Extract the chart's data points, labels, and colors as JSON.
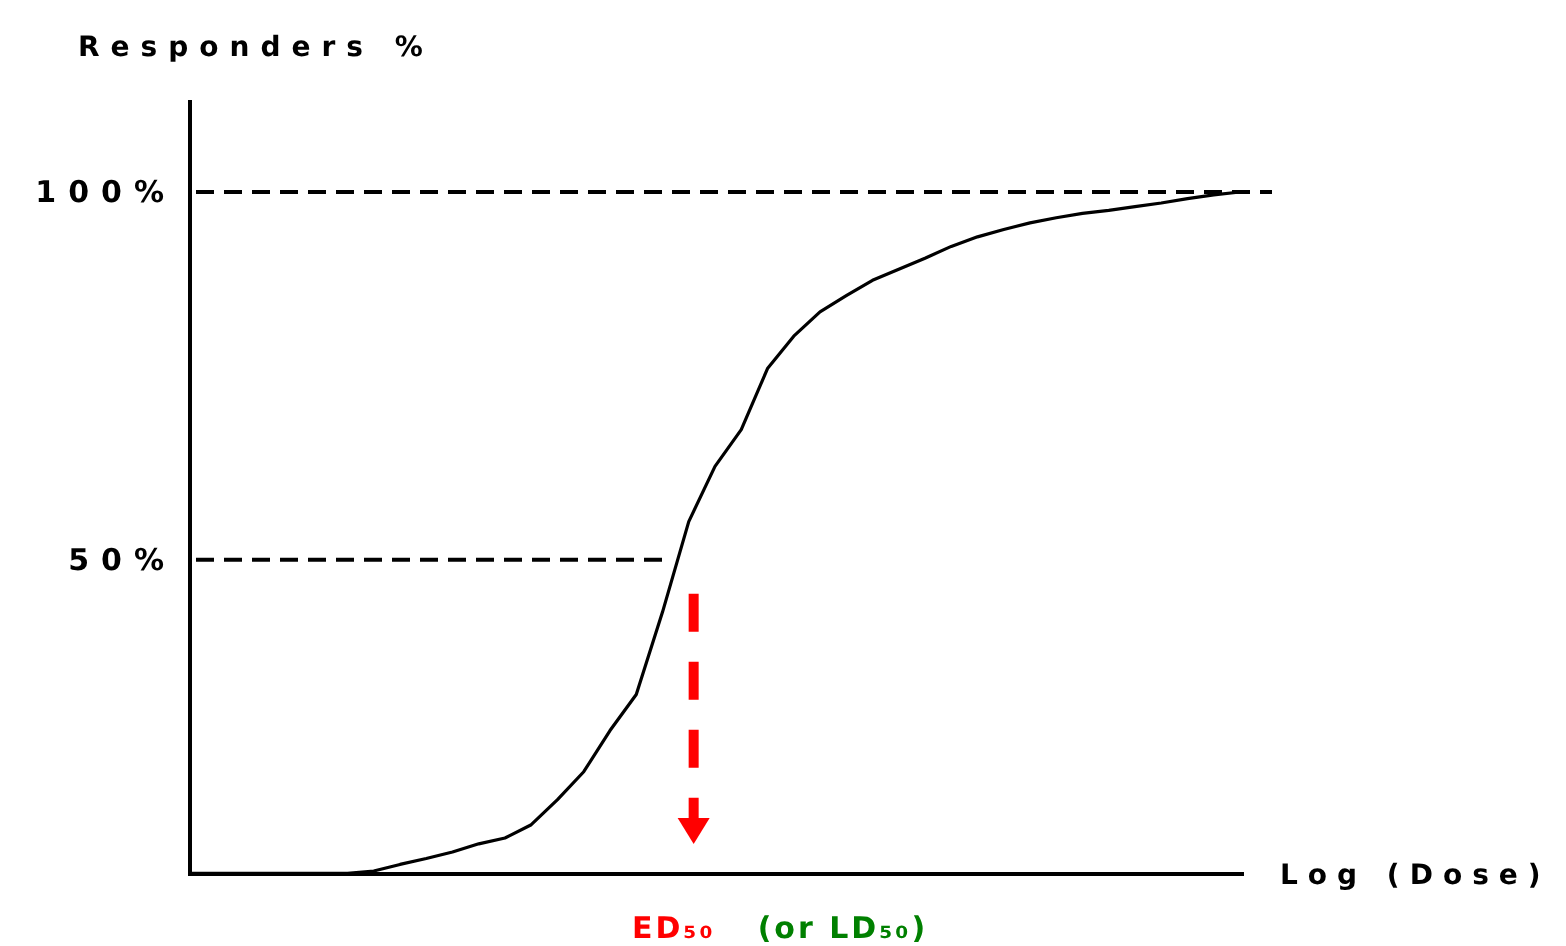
{
  "chart_data": {
    "type": "line",
    "xlabel": "Log (Dose)",
    "ylabel": "Responders %",
    "categories": [
      null,
      null,
      null,
      null,
      null,
      null,
      null,
      null,
      null,
      null,
      null,
      null,
      null,
      null,
      null,
      null,
      null,
      null,
      null,
      null,
      null,
      null,
      null,
      null,
      null,
      null,
      null,
      null,
      null,
      null,
      null,
      null,
      null,
      null,
      null,
      null,
      null,
      null,
      null,
      null,
      null
    ],
    "series": [
      {
        "color": "#000000",
        "values": [
          7.4,
          7.4,
          7.4,
          7.4,
          7.4,
          7.4,
          7.4,
          7.7,
          8.6,
          9.4,
          10.3,
          11.4,
          12.2,
          14,
          17.4,
          21.2,
          26.8,
          31.7,
          42.9,
          55.2,
          62.7,
          67.7,
          76,
          80.4,
          83.7,
          85.9,
          88,
          89.5,
          91,
          92.6,
          93.9,
          94.9,
          95.8,
          96.5,
          97.1,
          97.5,
          98,
          98.5,
          99.1,
          99.6,
          100
        ]
      }
    ],
    "ylim": [
      7.3,
      112.5
    ],
    "yticks": [
      {
        "value": 50,
        "label": "50%"
      },
      {
        "value": 100,
        "label": "100%"
      }
    ],
    "tick_labels": "y",
    "ref_lines": [
      {
        "axis": "y",
        "value": 50,
        "line_style": "dashed",
        "color": "#000000"
      },
      {
        "axis": "y",
        "value": 100,
        "line_style": "dashed",
        "color": "#000000"
      }
    ],
    "annotations": [
      "ED₅₀",
      "(or LD₅₀)"
    ]
  }
}
